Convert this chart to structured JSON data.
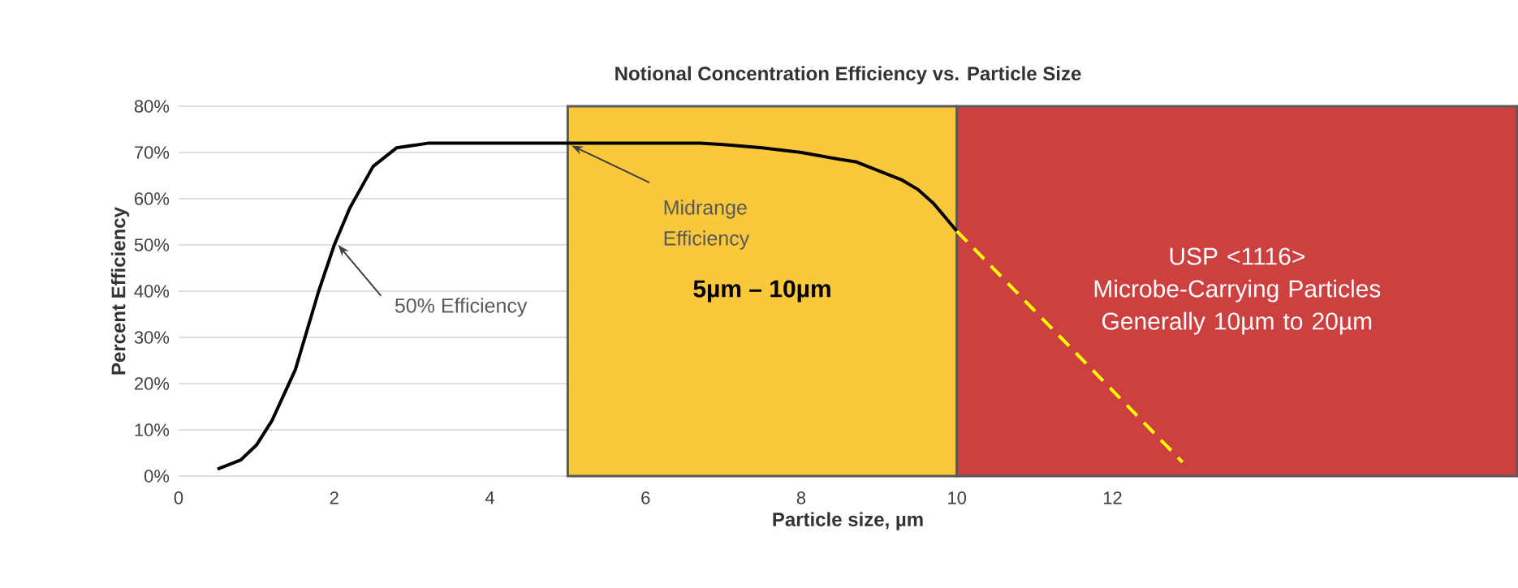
{
  "chart_data": {
    "type": "line",
    "title": "Notional Concentration Efficiency vs. Particle Size",
    "xlabel": "Particle size, µm",
    "ylabel": "Percent Efficiency",
    "xlim": [
      0,
      17.2
    ],
    "xticks": [
      0,
      2,
      4,
      6,
      8,
      10,
      12
    ],
    "ylim": [
      0,
      80
    ],
    "yticks": [
      {
        "value": 0,
        "label": "0%"
      },
      {
        "value": 10,
        "label": "10%"
      },
      {
        "value": 20,
        "label": "20%"
      },
      {
        "value": 30,
        "label": "30%"
      },
      {
        "value": 40,
        "label": "40%"
      },
      {
        "value": 50,
        "label": "50%"
      },
      {
        "value": 60,
        "label": "60%"
      },
      {
        "value": 70,
        "label": "70%"
      },
      {
        "value": 80,
        "label": "80%"
      }
    ],
    "grid": "y",
    "marker": "none",
    "series": [
      {
        "color": "#000000",
        "line_style": "solid",
        "x": [
          0.5,
          0.8,
          1.0,
          1.2,
          1.5,
          1.8,
          2.0,
          2.2,
          2.5,
          2.8,
          3.2,
          4,
          5,
          6,
          6.7,
          7.0,
          7.5,
          8.0,
          8.5,
          8.7,
          9.0,
          9.3,
          9.5,
          9.7,
          10.0
        ],
        "values": [
          1.5,
          3.5,
          6.7,
          12,
          23,
          40,
          50,
          58,
          67,
          71,
          72,
          72,
          72,
          72,
          72,
          71.7,
          71,
          70,
          68.5,
          68,
          66,
          64,
          62,
          59,
          53
        ]
      },
      {
        "color": "#ffff00",
        "line_style": "dashed",
        "x": [
          10,
          12.9
        ],
        "values": [
          53,
          3
        ]
      }
    ],
    "bands": [
      {
        "axis": "x",
        "from": 5,
        "to": 10,
        "label": "5µm – 10µm",
        "color": "#fbc83c"
      },
      {
        "axis": "x",
        "from": 10,
        "to": 17.2,
        "label": "USP <1116> Microbe-Carrying Particles Generally 10µm to 20µm",
        "color": "#cc4040"
      }
    ],
    "annotations": [
      {
        "text": "50% Efficiency",
        "x": 2.05,
        "y": 50
      },
      {
        "text": "Midrange Efficiency",
        "x": 5.05,
        "y": 71.5
      }
    ]
  }
}
